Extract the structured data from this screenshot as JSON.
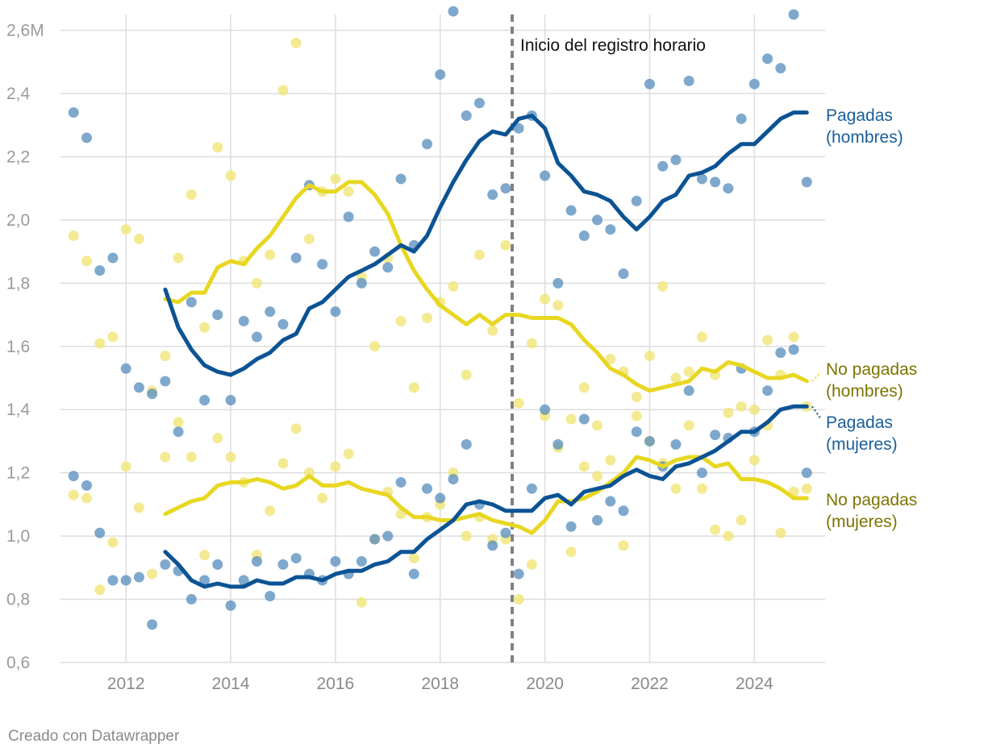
{
  "footer": "Creado con Datawrapper",
  "chart_data": {
    "type": "line+scatter",
    "title": "",
    "xlabel": "",
    "ylabel": "",
    "xlim": [
      2010.75,
      2025.35
    ],
    "ylim": [
      0.6,
      2.65
    ],
    "x_ticks": [
      2012,
      2014,
      2016,
      2018,
      2020,
      2022,
      2024
    ],
    "x_tick_labels": [
      "2012",
      "2014",
      "2016",
      "2018",
      "2020",
      "2022",
      "2024"
    ],
    "y_ticks": [
      0.6,
      0.8,
      1.0,
      1.2,
      1.4,
      1.6,
      1.8,
      2.0,
      2.2,
      2.4,
      2.6
    ],
    "y_tick_labels": [
      "0,6",
      "0,8",
      "1,0",
      "1,2",
      "1,4",
      "1,6",
      "1,8",
      "2,0",
      "2,2",
      "2,4",
      "2,6M"
    ],
    "grid": true,
    "annotation": {
      "x": 2019.375,
      "label": "Inicio del registro horario"
    },
    "colors": {
      "pagadas": "#0b5394",
      "no_pagadas": "#e8d722",
      "label_pagadas": "#1a5e9a",
      "label_no_pagadas": "#7d7400"
    },
    "series": [
      {
        "key": "pag_h",
        "name": "Pagadas (hombres)",
        "label_lines": [
          "Pagadas",
          "(hombres)"
        ],
        "group": "pagadas",
        "points_x": [
          2011.0,
          2011.25,
          2011.5,
          2011.75,
          2012.0,
          2012.25,
          2012.5,
          2012.75,
          2013.0,
          2013.25,
          2013.5,
          2013.75,
          2014.0,
          2014.25,
          2014.5,
          2014.75,
          2015.0,
          2015.25,
          2015.5,
          2015.75,
          2016.0,
          2016.25,
          2016.5,
          2016.75,
          2017.0,
          2017.25,
          2017.5,
          2017.75,
          2018.0,
          2018.25,
          2018.5,
          2018.75,
          2019.0,
          2019.25,
          2019.5,
          2019.75,
          2020.0,
          2020.25,
          2020.5,
          2020.75,
          2021.0,
          2021.25,
          2021.5,
          2021.75,
          2022.0,
          2022.25,
          2022.5,
          2022.75,
          2023.0,
          2023.25,
          2023.5,
          2023.75,
          2024.0,
          2024.25,
          2024.5,
          2024.75,
          2025.0
        ],
        "points_y": [
          2.34,
          2.26,
          1.84,
          1.88,
          1.53,
          1.47,
          1.45,
          1.49,
          1.33,
          1.74,
          1.43,
          1.7,
          1.43,
          1.68,
          1.63,
          1.71,
          1.67,
          1.88,
          2.11,
          1.86,
          1.71,
          2.01,
          1.8,
          1.9,
          1.85,
          2.13,
          1.92,
          2.24,
          2.46,
          2.66,
          2.33,
          2.37,
          2.08,
          2.1,
          2.29,
          2.33,
          2.14,
          1.8,
          2.03,
          1.95,
          2.0,
          1.97,
          1.83,
          2.06,
          2.43,
          2.17,
          2.19,
          2.44,
          2.13,
          2.12,
          2.1,
          2.32,
          2.43,
          2.51,
          2.48,
          2.65,
          2.12
        ],
        "line_x": [
          2012.75,
          2013.0,
          2013.25,
          2013.5,
          2013.75,
          2014.0,
          2014.25,
          2014.5,
          2014.75,
          2015.0,
          2015.25,
          2015.5,
          2015.75,
          2016.0,
          2016.25,
          2016.5,
          2016.75,
          2017.0,
          2017.25,
          2017.5,
          2017.75,
          2018.0,
          2018.25,
          2018.5,
          2018.75,
          2019.0,
          2019.25,
          2019.5,
          2019.75,
          2020.0,
          2020.25,
          2020.5,
          2020.75,
          2021.0,
          2021.25,
          2021.5,
          2021.75,
          2022.0,
          2022.25,
          2022.5,
          2022.75,
          2023.0,
          2023.25,
          2023.5,
          2023.75,
          2024.0,
          2024.25,
          2024.5,
          2024.75,
          2025.0
        ],
        "line_y": [
          1.78,
          1.66,
          1.59,
          1.54,
          1.52,
          1.51,
          1.53,
          1.56,
          1.58,
          1.62,
          1.64,
          1.72,
          1.74,
          1.78,
          1.82,
          1.84,
          1.86,
          1.89,
          1.92,
          1.9,
          1.95,
          2.04,
          2.12,
          2.19,
          2.25,
          2.28,
          2.27,
          2.32,
          2.33,
          2.29,
          2.18,
          2.14,
          2.09,
          2.08,
          2.06,
          2.01,
          1.97,
          2.01,
          2.06,
          2.08,
          2.14,
          2.15,
          2.17,
          2.21,
          2.24,
          2.24,
          2.28,
          2.32,
          2.34,
          2.34
        ]
      },
      {
        "key": "pag_m",
        "name": "Pagadas (mujeres)",
        "label_lines": [
          "Pagadas",
          "(mujeres)"
        ],
        "group": "pagadas",
        "points_x": [
          2011.0,
          2011.25,
          2011.5,
          2011.75,
          2012.0,
          2012.25,
          2012.5,
          2012.75,
          2013.0,
          2013.25,
          2013.5,
          2013.75,
          2014.0,
          2014.25,
          2014.5,
          2014.75,
          2015.0,
          2015.25,
          2015.5,
          2015.75,
          2016.0,
          2016.25,
          2016.5,
          2016.75,
          2017.0,
          2017.25,
          2017.5,
          2017.75,
          2018.0,
          2018.25,
          2018.5,
          2018.75,
          2019.0,
          2019.25,
          2019.5,
          2019.75,
          2020.0,
          2020.25,
          2020.5,
          2020.75,
          2021.0,
          2021.25,
          2021.5,
          2021.75,
          2022.0,
          2022.25,
          2022.5,
          2022.75,
          2023.0,
          2023.25,
          2023.5,
          2023.75,
          2024.0,
          2024.25,
          2024.5,
          2024.75,
          2025.0
        ],
        "points_y": [
          1.19,
          1.16,
          1.01,
          0.86,
          0.86,
          0.87,
          0.72,
          0.91,
          0.89,
          0.8,
          0.86,
          0.91,
          0.78,
          0.86,
          0.92,
          0.81,
          0.91,
          0.93,
          0.88,
          0.86,
          0.92,
          0.88,
          0.92,
          0.99,
          1.0,
          1.17,
          0.88,
          1.15,
          1.12,
          1.18,
          1.29,
          1.1,
          0.97,
          1.01,
          0.88,
          1.15,
          1.4,
          1.29,
          1.03,
          1.37,
          1.05,
          1.11,
          1.08,
          1.33,
          1.3,
          1.22,
          1.29,
          1.46,
          1.2,
          1.32,
          1.31,
          1.53,
          1.33,
          1.46,
          1.58,
          1.59,
          1.2
        ],
        "line_x": [
          2012.75,
          2013.0,
          2013.25,
          2013.5,
          2013.75,
          2014.0,
          2014.25,
          2014.5,
          2014.75,
          2015.0,
          2015.25,
          2015.5,
          2015.75,
          2016.0,
          2016.25,
          2016.5,
          2016.75,
          2017.0,
          2017.25,
          2017.5,
          2017.75,
          2018.0,
          2018.25,
          2018.5,
          2018.75,
          2019.0,
          2019.25,
          2019.5,
          2019.75,
          2020.0,
          2020.25,
          2020.5,
          2020.75,
          2021.0,
          2021.25,
          2021.5,
          2021.75,
          2022.0,
          2022.25,
          2022.5,
          2022.75,
          2023.0,
          2023.25,
          2023.5,
          2023.75,
          2024.0,
          2024.25,
          2024.5,
          2024.75,
          2025.0
        ],
        "line_y": [
          0.95,
          0.91,
          0.86,
          0.84,
          0.85,
          0.84,
          0.84,
          0.86,
          0.85,
          0.85,
          0.87,
          0.87,
          0.86,
          0.88,
          0.89,
          0.89,
          0.91,
          0.92,
          0.95,
          0.95,
          0.99,
          1.02,
          1.05,
          1.1,
          1.11,
          1.1,
          1.08,
          1.08,
          1.08,
          1.12,
          1.13,
          1.1,
          1.14,
          1.15,
          1.16,
          1.19,
          1.21,
          1.19,
          1.18,
          1.22,
          1.23,
          1.25,
          1.27,
          1.3,
          1.33,
          1.33,
          1.36,
          1.4,
          1.41,
          1.41
        ]
      },
      {
        "key": "nop_h",
        "name": "No pagadas (hombres)",
        "label_lines": [
          "No pagadas",
          "(hombres)"
        ],
        "group": "no_pagadas",
        "points_x": [
          2011.0,
          2011.25,
          2011.5,
          2011.75,
          2012.0,
          2012.25,
          2012.5,
          2012.75,
          2013.0,
          2013.25,
          2013.5,
          2013.75,
          2014.0,
          2014.25,
          2014.5,
          2014.75,
          2015.0,
          2015.25,
          2015.5,
          2015.75,
          2016.0,
          2016.25,
          2016.5,
          2016.75,
          2017.0,
          2017.25,
          2017.5,
          2017.75,
          2018.0,
          2018.25,
          2018.5,
          2018.75,
          2019.0,
          2019.25,
          2019.5,
          2019.75,
          2020.0,
          2020.25,
          2020.5,
          2020.75,
          2021.0,
          2021.25,
          2021.5,
          2021.75,
          2022.0,
          2022.25,
          2022.5,
          2022.75,
          2023.0,
          2023.25,
          2023.5,
          2023.75,
          2024.0,
          2024.25,
          2024.5,
          2024.75,
          2025.0
        ],
        "points_y": [
          1.95,
          1.87,
          1.61,
          1.63,
          1.97,
          1.94,
          1.46,
          1.57,
          1.88,
          2.08,
          1.66,
          2.23,
          2.14,
          1.87,
          1.8,
          1.89,
          2.41,
          2.56,
          1.94,
          2.09,
          2.13,
          2.09,
          1.82,
          1.6,
          1.88,
          1.68,
          1.47,
          1.69,
          1.74,
          1.79,
          1.51,
          1.89,
          1.65,
          1.92,
          1.42,
          1.61,
          1.75,
          1.73,
          1.37,
          1.47,
          1.35,
          1.56,
          1.52,
          1.44,
          1.57,
          1.79,
          1.5,
          1.52,
          1.63,
          1.51,
          1.39,
          1.41,
          1.4,
          1.62,
          1.51,
          1.63,
          1.41
        ],
        "line_x": [
          2012.75,
          2013.0,
          2013.25,
          2013.5,
          2013.75,
          2014.0,
          2014.25,
          2014.5,
          2014.75,
          2015.0,
          2015.25,
          2015.5,
          2015.75,
          2016.0,
          2016.25,
          2016.5,
          2016.75,
          2017.0,
          2017.25,
          2017.5,
          2017.75,
          2018.0,
          2018.25,
          2018.5,
          2018.75,
          2019.0,
          2019.25,
          2019.5,
          2019.75,
          2020.0,
          2020.25,
          2020.5,
          2020.75,
          2021.0,
          2021.25,
          2021.5,
          2021.75,
          2022.0,
          2022.25,
          2022.5,
          2022.75,
          2023.0,
          2023.25,
          2023.5,
          2023.75,
          2024.0,
          2024.25,
          2024.5,
          2024.75,
          2025.0
        ],
        "line_y": [
          1.75,
          1.74,
          1.77,
          1.77,
          1.85,
          1.87,
          1.86,
          1.91,
          1.95,
          2.01,
          2.07,
          2.11,
          2.09,
          2.09,
          2.12,
          2.12,
          2.08,
          2.02,
          1.92,
          1.84,
          1.78,
          1.73,
          1.7,
          1.67,
          1.7,
          1.67,
          1.7,
          1.7,
          1.69,
          1.69,
          1.69,
          1.67,
          1.62,
          1.58,
          1.53,
          1.51,
          1.48,
          1.46,
          1.47,
          1.48,
          1.49,
          1.53,
          1.52,
          1.55,
          1.54,
          1.52,
          1.5,
          1.5,
          1.51,
          1.49
        ]
      },
      {
        "key": "nop_m",
        "name": "No pagadas (mujeres)",
        "label_lines": [
          "No pagadas",
          "(mujeres)"
        ],
        "group": "no_pagadas",
        "points_x": [
          2011.0,
          2011.25,
          2011.5,
          2011.75,
          2012.0,
          2012.25,
          2012.5,
          2012.75,
          2013.0,
          2013.25,
          2013.5,
          2013.75,
          2014.0,
          2014.25,
          2014.5,
          2014.75,
          2015.0,
          2015.25,
          2015.5,
          2015.75,
          2016.0,
          2016.25,
          2016.5,
          2016.75,
          2017.0,
          2017.25,
          2017.5,
          2017.75,
          2018.0,
          2018.25,
          2018.5,
          2018.75,
          2019.0,
          2019.25,
          2019.5,
          2019.75,
          2020.0,
          2020.25,
          2020.5,
          2020.75,
          2021.0,
          2021.25,
          2021.5,
          2021.75,
          2022.0,
          2022.25,
          2022.5,
          2022.75,
          2023.0,
          2023.25,
          2023.5,
          2023.75,
          2024.0,
          2024.25,
          2024.5,
          2024.75,
          2025.0
        ],
        "points_y": [
          1.13,
          1.12,
          0.83,
          0.98,
          1.22,
          1.09,
          0.88,
          1.25,
          1.36,
          1.25,
          0.94,
          1.31,
          1.25,
          1.17,
          0.94,
          1.08,
          1.23,
          1.34,
          1.2,
          1.12,
          1.22,
          1.26,
          0.79,
          0.99,
          1.14,
          1.07,
          0.93,
          1.06,
          1.1,
          1.2,
          1.0,
          1.06,
          0.99,
          0.99,
          0.8,
          0.91,
          1.38,
          1.28,
          0.95,
          1.22,
          1.19,
          1.24,
          0.97,
          1.38,
          1.3,
          1.23,
          1.15,
          1.35,
          1.15,
          1.02,
          1.0,
          1.05,
          1.24,
          1.35,
          1.01,
          1.14,
          1.15
        ],
        "line_x": [
          2012.75,
          2013.0,
          2013.25,
          2013.5,
          2013.75,
          2014.0,
          2014.25,
          2014.5,
          2014.75,
          2015.0,
          2015.25,
          2015.5,
          2015.75,
          2016.0,
          2016.25,
          2016.5,
          2016.75,
          2017.0,
          2017.25,
          2017.5,
          2017.75,
          2018.0,
          2018.25,
          2018.5,
          2018.75,
          2019.0,
          2019.25,
          2019.5,
          2019.75,
          2020.0,
          2020.25,
          2020.5,
          2020.75,
          2021.0,
          2021.25,
          2021.5,
          2021.75,
          2022.0,
          2022.25,
          2022.5,
          2022.75,
          2023.0,
          2023.25,
          2023.5,
          2023.75,
          2024.0,
          2024.25,
          2024.5,
          2024.75,
          2025.0
        ],
        "line_y": [
          1.07,
          1.09,
          1.11,
          1.12,
          1.16,
          1.17,
          1.17,
          1.18,
          1.17,
          1.15,
          1.16,
          1.19,
          1.16,
          1.16,
          1.17,
          1.15,
          1.14,
          1.13,
          1.09,
          1.06,
          1.06,
          1.05,
          1.05,
          1.06,
          1.07,
          1.05,
          1.04,
          1.03,
          1.01,
          1.05,
          1.11,
          1.11,
          1.12,
          1.14,
          1.17,
          1.2,
          1.25,
          1.24,
          1.22,
          1.24,
          1.25,
          1.25,
          1.22,
          1.23,
          1.18,
          1.18,
          1.17,
          1.15,
          1.12,
          1.12
        ]
      }
    ]
  }
}
